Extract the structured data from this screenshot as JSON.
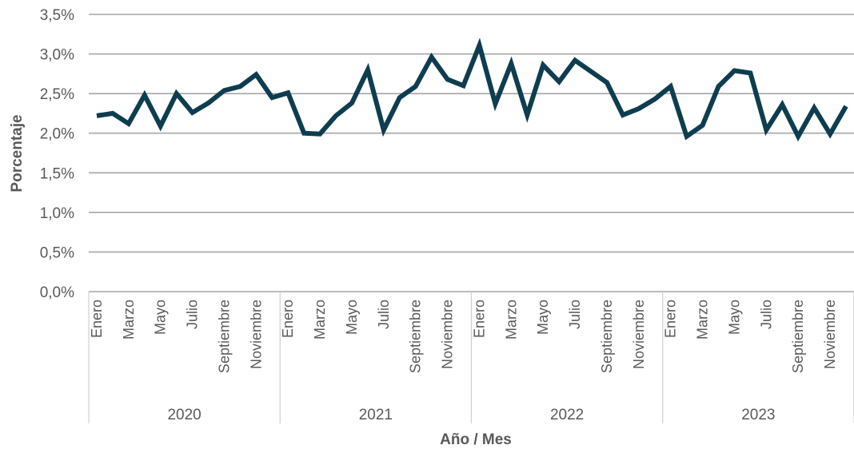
{
  "chart_data": {
    "type": "line",
    "xlabel": "Año / Mes",
    "ylabel": "Porcentaje",
    "ylim": [
      0,
      3.5
    ],
    "y_ticks": [
      "0,0%",
      "0,5%",
      "1,0%",
      "1,5%",
      "2,0%",
      "2,5%",
      "3,0%",
      "3,5%"
    ],
    "grid": "horizontal",
    "legend": "none",
    "years": [
      "2020",
      "2021",
      "2022",
      "2023"
    ],
    "month_labels": [
      "Enero",
      "Marzo",
      "Mayo",
      "Julio",
      "Septiembre",
      "Noviembre"
    ],
    "x_count": 48,
    "series": [
      {
        "color": "#0e3d50",
        "values": [
          2.22,
          2.25,
          2.12,
          2.48,
          2.09,
          2.5,
          2.26,
          2.38,
          2.54,
          2.59,
          2.74,
          2.45,
          2.51,
          2.0,
          1.99,
          2.22,
          2.38,
          2.8,
          2.04,
          2.45,
          2.59,
          2.96,
          2.68,
          2.6,
          3.11,
          2.37,
          2.88,
          2.23,
          2.86,
          2.65,
          2.92,
          2.78,
          2.64,
          2.23,
          2.31,
          2.43,
          2.59,
          1.96,
          2.1,
          2.59,
          2.79,
          2.76,
          2.04,
          2.36,
          1.96,
          2.32,
          1.99,
          2.34
        ]
      }
    ]
  }
}
